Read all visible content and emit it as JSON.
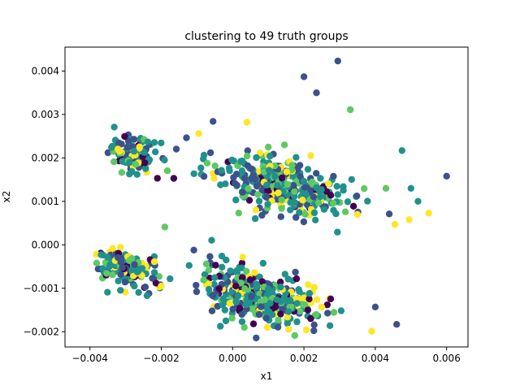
{
  "chart_data": {
    "type": "scatter",
    "title": "clustering to 49 truth groups",
    "xlabel": "x1",
    "ylabel": "x2",
    "xlim": [
      -0.0047,
      0.0066
    ],
    "ylim": [
      -0.00235,
      0.00455
    ],
    "x_ticks": [
      -0.004,
      -0.002,
      0.0,
      0.002,
      0.004,
      0.006
    ],
    "x_tick_labels": [
      "−0.004",
      "−0.002",
      "0.000",
      "0.002",
      "0.004",
      "0.006"
    ],
    "y_ticks": [
      -0.002,
      -0.001,
      0.0,
      0.001,
      0.002,
      0.003,
      0.004
    ],
    "y_tick_labels": [
      "−0.002",
      "−0.001",
      "0.000",
      "0.001",
      "0.002",
      "0.003",
      "0.004"
    ],
    "grid": false,
    "colormap": "viridis",
    "palette": [
      "#440154",
      "#3b528b",
      "#21918c",
      "#5ec962",
      "#fde725"
    ],
    "points": [
      [
        0.00295,
        0.00423,
        1
      ],
      [
        0.002,
        0.00387,
        1
      ],
      [
        0.00235,
        0.0035,
        1
      ],
      [
        0.0033,
        0.00311,
        3
      ],
      [
        0.006,
        0.00158,
        1
      ],
      [
        0.00475,
        0.00217,
        2
      ],
      [
        0.0055,
        0.00073,
        4
      ],
      [
        0.00455,
        0.00047,
        4
      ],
      [
        0.00495,
        0.00058,
        4
      ],
      [
        0.0039,
        -0.00199,
        4
      ],
      [
        0.0046,
        -0.00183,
        1
      ],
      [
        0.004,
        -0.00143,
        1
      ],
      [
        -0.00095,
        0.00256,
        4
      ],
      [
        -0.00055,
        0.00284,
        1
      ],
      [
        0.0004,
        0.00282,
        4
      ],
      [
        -0.00165,
        0.00153,
        0
      ],
      [
        -0.0003,
        -0.00026,
        2
      ],
      [
        0.001,
        0.00225,
        3
      ],
      [
        0.005,
        0.0013,
        2
      ],
      [
        0.0052,
        0.001,
        2
      ],
      [
        0.0043,
        0.0013,
        3
      ],
      [
        0.0035,
        0.0007,
        4
      ],
      [
        -0.00215,
        -0.00088,
        0
      ],
      [
        -0.00225,
        -0.00077,
        1
      ],
      [
        -0.002,
        -0.00095,
        4
      ],
      [
        -0.0019,
        0.00041,
        3
      ]
    ],
    "clusters": [
      {
        "cx": -0.0028,
        "cy": 0.0021,
        "sx": 0.00045,
        "sy": 0.00027,
        "n": 120
      },
      {
        "cx": 0.0012,
        "cy": 0.0014,
        "sx": 0.0013,
        "sy": 0.0004,
        "n": 380
      },
      {
        "cx": -0.003,
        "cy": -0.0005,
        "sx": 0.0006,
        "sy": 0.00027,
        "n": 140
      },
      {
        "cx": 0.0008,
        "cy": -0.0012,
        "sx": 0.0012,
        "sy": 0.0004,
        "n": 340
      }
    ]
  }
}
